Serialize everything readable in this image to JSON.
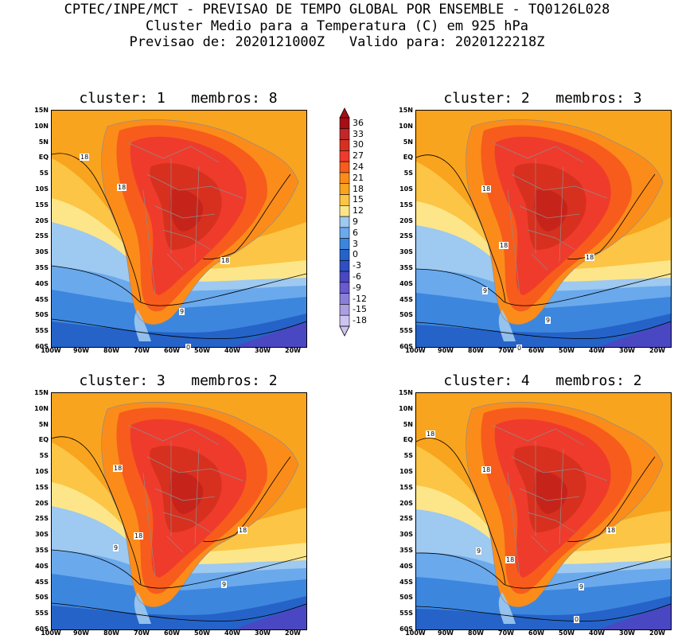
{
  "header": {
    "line1": "CPTEC/INPE/MCT - PREVISAO DE TEMPO GLOBAL POR ENSEMBLE - TQ0126L028",
    "line2": "Cluster Medio para a Temperatura (C) em 925 hPa",
    "line3": "Previsao de: 2020121000Z   Valido para: 2020122218Z"
  },
  "panels": [
    {
      "title": "cluster: 1   membros: 8"
    },
    {
      "title": "cluster: 2   membros: 3"
    },
    {
      "title": "cluster: 3   membros: 2"
    },
    {
      "title": "cluster: 4   membros: 2"
    }
  ],
  "lat_labels": [
    "15N",
    "10N",
    "5N",
    "EQ",
    "5S",
    "10S",
    "15S",
    "20S",
    "25S",
    "30S",
    "35S",
    "40S",
    "45S",
    "50S",
    "55S",
    "60S"
  ],
  "lon_labels": [
    "100W",
    "90W",
    "80W",
    "70W",
    "60W",
    "50W",
    "40W",
    "30W",
    "20W"
  ],
  "colorbar": {
    "levels": [
      "36",
      "33",
      "30",
      "27",
      "24",
      "21",
      "18",
      "15",
      "12",
      "9",
      "6",
      "3",
      "0",
      "-3",
      "-6",
      "-9",
      "-12",
      "-15",
      "-18"
    ],
    "colors": [
      "#a50f15",
      "#c0282a",
      "#d7301f",
      "#ef3b2c",
      "#f75c1c",
      "#fb8c1a",
      "#f9a41e",
      "#fcc545",
      "#fde68a",
      "#9ec9f0",
      "#6aa9ec",
      "#3d86de",
      "#2563c8",
      "#2f4fc4",
      "#4a47c2",
      "#6a5acd",
      "#8a7fd8",
      "#ab9fe2",
      "#cdc4ef"
    ]
  },
  "contour_labels": {
    "p1": [
      "18",
      "18",
      "18",
      "9",
      "0"
    ],
    "p2": [
      "18",
      "18",
      "18",
      "9",
      "9",
      "0"
    ],
    "p3": [
      "18",
      "18",
      "18",
      "9",
      "9"
    ],
    "p4": [
      "18",
      "18",
      "18",
      "18",
      "9",
      "9",
      "0"
    ]
  }
}
